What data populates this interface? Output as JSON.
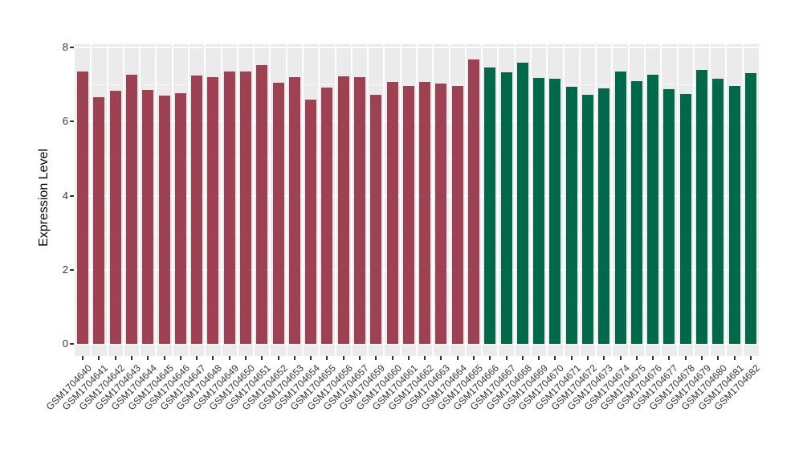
{
  "chart_data": {
    "type": "bar",
    "title": "",
    "xlabel": "",
    "ylabel": "Expression Level",
    "ylim": [
      0,
      8
    ],
    "yticks": [
      0,
      2,
      4,
      6,
      8
    ],
    "yticks_minor": [
      1,
      3,
      5,
      7
    ],
    "grid": "on",
    "legend_position": "none",
    "panel_bg": "#EBEBEB",
    "gridline_color": "#FFFFFF",
    "axis_text_color": "#333333",
    "axis_title_color": "#000000",
    "categories": [
      "GSM1704640",
      "GSM1704641",
      "GSM1704642",
      "GSM1704643",
      "GSM1704644",
      "GSM1704645",
      "GSM1704646",
      "GSM1704647",
      "GSM1704648",
      "GSM1704649",
      "GSM1704650",
      "GSM1704651",
      "GSM1704652",
      "GSM1704653",
      "GSM1704654",
      "GSM1704655",
      "GSM1704656",
      "GSM1704657",
      "GSM1704659",
      "GSM1704660",
      "GSM1704661",
      "GSM1704662",
      "GSM1704663",
      "GSM1704664",
      "GSM1704665",
      "GSM1704666",
      "GSM1704667",
      "GSM1704668",
      "GSM1704669",
      "GSM1704670",
      "GSM1704671",
      "GSM1704672",
      "GSM1704673",
      "GSM1704674",
      "GSM1704675",
      "GSM1704676",
      "GSM1704677",
      "GSM1704678",
      "GSM1704679",
      "GSM1704680",
      "GSM1704681",
      "GSM1704682"
    ],
    "values": [
      7.35,
      6.66,
      6.83,
      7.26,
      6.86,
      6.7,
      6.77,
      7.24,
      7.19,
      7.36,
      7.36,
      7.53,
      7.04,
      7.19,
      6.6,
      6.91,
      7.21,
      7.19,
      6.73,
      7.06,
      6.97,
      7.06,
      7.02,
      6.97,
      7.67,
      7.45,
      7.33,
      7.58,
      7.18,
      7.15,
      6.93,
      6.73,
      6.89,
      7.36,
      7.09,
      7.27,
      6.88,
      6.75,
      7.39,
      7.15,
      6.96,
      7.31
    ],
    "color_groups": [
      {
        "name": "group-1",
        "color": "#9E4152",
        "first_category": "GSM1704640",
        "last_category": "GSM1704665",
        "count": 25
      },
      {
        "name": "group-2",
        "color": "#00694B",
        "first_category": "GSM1704666",
        "last_category": "GSM1704682",
        "count": 17
      }
    ]
  }
}
